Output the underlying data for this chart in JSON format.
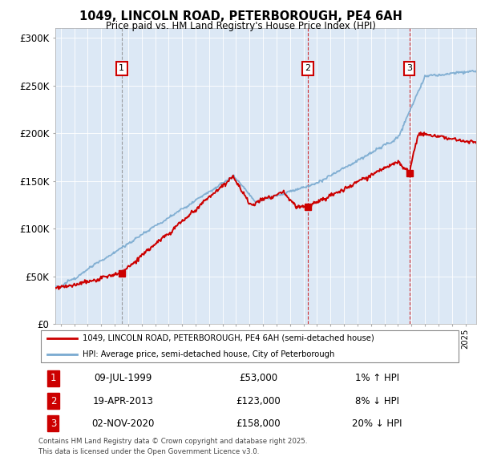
{
  "title": "1049, LINCOLN ROAD, PETERBOROUGH, PE4 6AH",
  "subtitle": "Price paid vs. HM Land Registry's House Price Index (HPI)",
  "ylim": [
    0,
    310000
  ],
  "yticks": [
    0,
    50000,
    100000,
    150000,
    200000,
    250000,
    300000
  ],
  "ytick_labels": [
    "£0",
    "£50K",
    "£100K",
    "£150K",
    "£200K",
    "£250K",
    "£300K"
  ],
  "background_color": "#ffffff",
  "plot_background": "#dce8f5",
  "grid_color": "#ffffff",
  "transactions": [
    {
      "label": "1",
      "date": "09-JUL-1999",
      "price": 53000,
      "year": 1999.52,
      "hpi_diff": "1% ↑ HPI"
    },
    {
      "label": "2",
      "date": "19-APR-2013",
      "price": 123000,
      "year": 2013.3,
      "hpi_diff": "8% ↓ HPI"
    },
    {
      "label": "3",
      "date": "02-NOV-2020",
      "price": 158000,
      "year": 2020.84,
      "hpi_diff": "20% ↓ HPI"
    }
  ],
  "legend_line1": "1049, LINCOLN ROAD, PETERBOROUGH, PE4 6AH (semi-detached house)",
  "legend_line2": "HPI: Average price, semi-detached house, City of Peterborough",
  "footer_line1": "Contains HM Land Registry data © Crown copyright and database right 2025.",
  "footer_line2": "This data is licensed under the Open Government Licence v3.0.",
  "red_color": "#cc0000",
  "blue_color": "#7aaad0",
  "marker_color": "#cc0000",
  "xlim_left": 1994.6,
  "xlim_right": 2025.8,
  "x_start": 1995,
  "x_end": 2025
}
